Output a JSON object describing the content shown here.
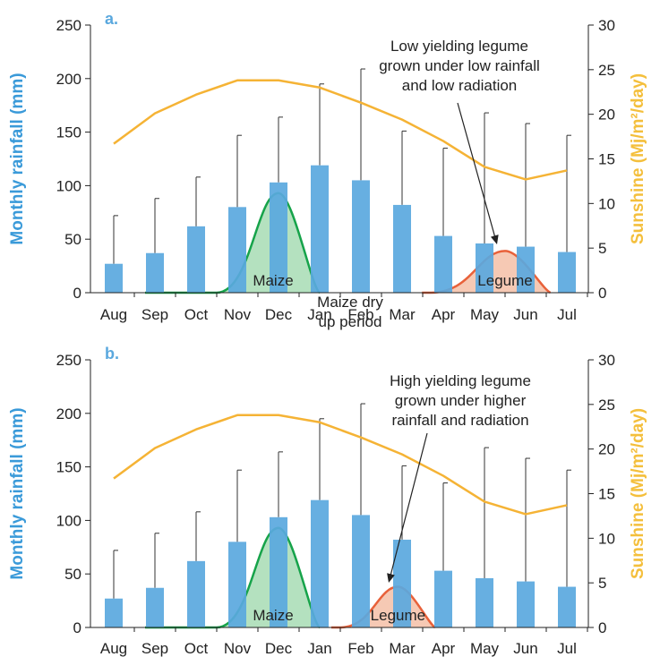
{
  "colors": {
    "bar": "#5aa8de",
    "sunshine": "#f5b335",
    "maize_stroke": "#16a34a",
    "maize_fill": "#a7dcb4",
    "legume_stroke": "#e8613a",
    "legume_fill": "#f5bfa7",
    "rainfall_label": "#3a9ad9",
    "sunshine_label": "#f4bf3c",
    "axis": "#222222"
  },
  "chart_data": [
    {
      "type": "bar",
      "panel_label": "a.",
      "categories": [
        "Aug",
        "Sep",
        "Oct",
        "Nov",
        "Dec",
        "Jan",
        "Feb",
        "Mar",
        "Apr",
        "May",
        "Jun",
        "Jul"
      ],
      "ylabel": "Monthly rainfall (mm)",
      "y2label": "Sunshine (Mj/m²/day)",
      "ylim": [
        0,
        250
      ],
      "y2lim": [
        0,
        30
      ],
      "yticks": [
        "0",
        "50",
        "100",
        "150",
        "200",
        "250"
      ],
      "y2ticks": [
        "0",
        "5",
        "10",
        "15",
        "20",
        "25",
        "30"
      ],
      "series": [
        {
          "name": "Monthly rainfall",
          "axis": "left",
          "values": [
            27,
            37,
            62,
            80,
            103,
            119,
            105,
            82,
            53,
            46,
            43,
            38
          ]
        },
        {
          "name": "Rainfall upper error",
          "axis": "left",
          "values": [
            72,
            88,
            108,
            147,
            164,
            195,
            209,
            151,
            135,
            168,
            158,
            147
          ]
        },
        {
          "name": "Sunshine",
          "axis": "right",
          "values": [
            16.7,
            20.1,
            22.2,
            23.8,
            23.8,
            23.0,
            21.3,
            19.4,
            17.0,
            14.1,
            12.7,
            13.7
          ]
        }
      ],
      "crops": [
        {
          "label": "Maize",
          "start_month": 2.5,
          "peak_month": 4.0,
          "end_month": 5.0,
          "peak_rainfall": 93
        },
        {
          "label": "Legume",
          "start_month": 7.7,
          "peak_month": 9.5,
          "end_month": 10.6,
          "peak_rainfall": 39
        }
      ],
      "annotations": [
        {
          "text": "Maize dry\nup period"
        },
        {
          "text": "Low yielding legume\ngrown under low rainfall\nand low radiation"
        }
      ]
    },
    {
      "type": "bar",
      "panel_label": "b.",
      "categories": [
        "Aug",
        "Sep",
        "Oct",
        "Nov",
        "Dec",
        "Jan",
        "Feb",
        "Mar",
        "Apr",
        "May",
        "Jun",
        "Jul"
      ],
      "ylabel": "Monthly rainfall (mm)",
      "y2label": "Sunshine (Mj/m²/day)",
      "ylim": [
        0,
        250
      ],
      "y2lim": [
        0,
        30
      ],
      "yticks": [
        "0",
        "50",
        "100",
        "150",
        "200",
        "250"
      ],
      "y2ticks": [
        "0",
        "5",
        "10",
        "15",
        "20",
        "25",
        "30"
      ],
      "series": [
        {
          "name": "Monthly rainfall",
          "axis": "left",
          "values": [
            27,
            37,
            62,
            80,
            103,
            119,
            105,
            82,
            53,
            46,
            43,
            38
          ]
        },
        {
          "name": "Rainfall upper error",
          "axis": "left",
          "values": [
            72,
            88,
            108,
            147,
            164,
            195,
            209,
            151,
            135,
            168,
            158,
            147
          ]
        },
        {
          "name": "Sunshine",
          "axis": "right",
          "values": [
            16.7,
            20.1,
            22.2,
            23.8,
            23.8,
            23.0,
            21.3,
            19.4,
            17.0,
            14.1,
            12.7,
            13.7
          ]
        }
      ],
      "crops": [
        {
          "label": "Maize",
          "start_month": 2.5,
          "peak_month": 4.0,
          "end_month": 5.0,
          "peak_rainfall": 93
        },
        {
          "label": "Legume",
          "start_month": 5.5,
          "peak_month": 6.9,
          "end_month": 7.8,
          "peak_rainfall": 38
        }
      ],
      "annotations": [
        {
          "text": "High yielding legume\ngrown under higher\nrainfall and radiation"
        }
      ]
    }
  ]
}
